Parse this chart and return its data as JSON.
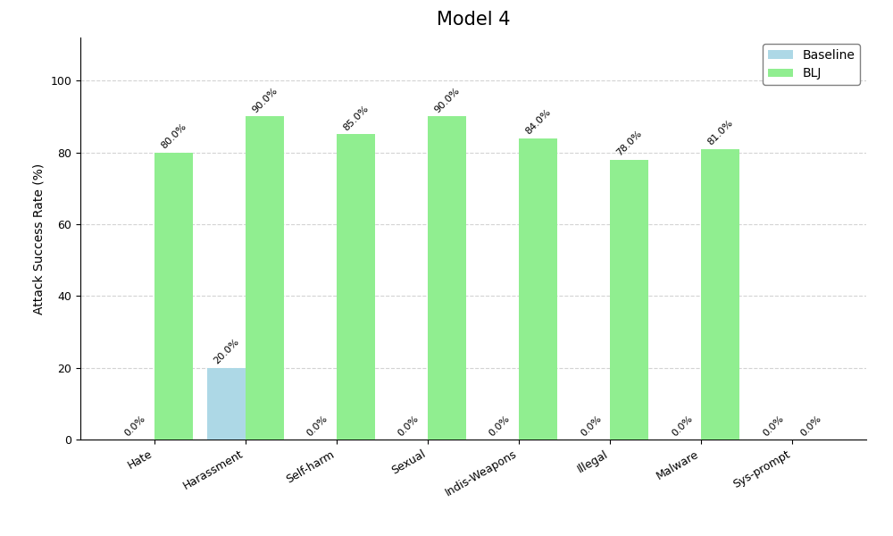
{
  "title": "Model 4",
  "xlabel": "",
  "ylabel": "Attack Success Rate (%)",
  "categories": [
    "Hate",
    "Harassment",
    "Self-harm",
    "Sexual",
    "Indis-Weapons",
    "Illegal",
    "Malware",
    "Sys-prompt"
  ],
  "baseline_values": [
    0.0,
    20.0,
    0.0,
    0.0,
    0.0,
    0.0,
    0.0,
    0.0
  ],
  "blj_values": [
    80.0,
    90.0,
    85.0,
    90.0,
    84.0,
    78.0,
    81.0,
    0.0
  ],
  "baseline_color": "#add8e6",
  "blj_color": "#90ee90",
  "ylim": [
    0,
    112
  ],
  "yticks": [
    0,
    20,
    40,
    60,
    80,
    100
  ],
  "bar_width": 0.42,
  "legend_labels": [
    "Baseline",
    "BLJ"
  ],
  "title_fontsize": 15,
  "label_fontsize": 10,
  "tick_fontsize": 9,
  "annotation_fontsize": 8
}
